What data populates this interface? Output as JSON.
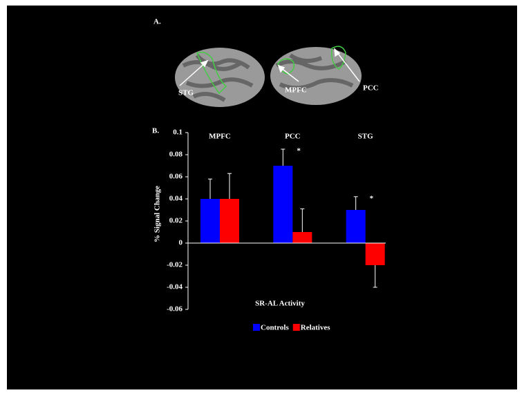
{
  "panel_a": {
    "label": "A.",
    "regions": [
      "STG",
      "MPFC",
      "PCC"
    ]
  },
  "chart_data": {
    "type": "bar",
    "label": "B.",
    "categories": [
      "MPFC",
      "PCC",
      "STG"
    ],
    "series": [
      {
        "name": "Controls",
        "color": "#0000ff",
        "values": [
          0.04,
          0.07,
          0.03
        ],
        "errors": [
          0.018,
          0.015,
          0.012
        ]
      },
      {
        "name": "Relatives",
        "color": "#ff0000",
        "values": [
          0.04,
          0.01,
          -0.02
        ],
        "errors": [
          0.023,
          0.021,
          0.02
        ]
      }
    ],
    "annotations": [
      {
        "text": "*",
        "category": "PCC"
      },
      {
        "text": "*",
        "category": "STG"
      }
    ],
    "ylabel": "% Signal Change",
    "xlabel": "SR-AL Activity",
    "ylim": [
      -0.06,
      0.1
    ],
    "yticks": [
      -0.06,
      -0.04,
      -0.02,
      0,
      0.02,
      0.04,
      0.06,
      0.08,
      0.1
    ]
  }
}
